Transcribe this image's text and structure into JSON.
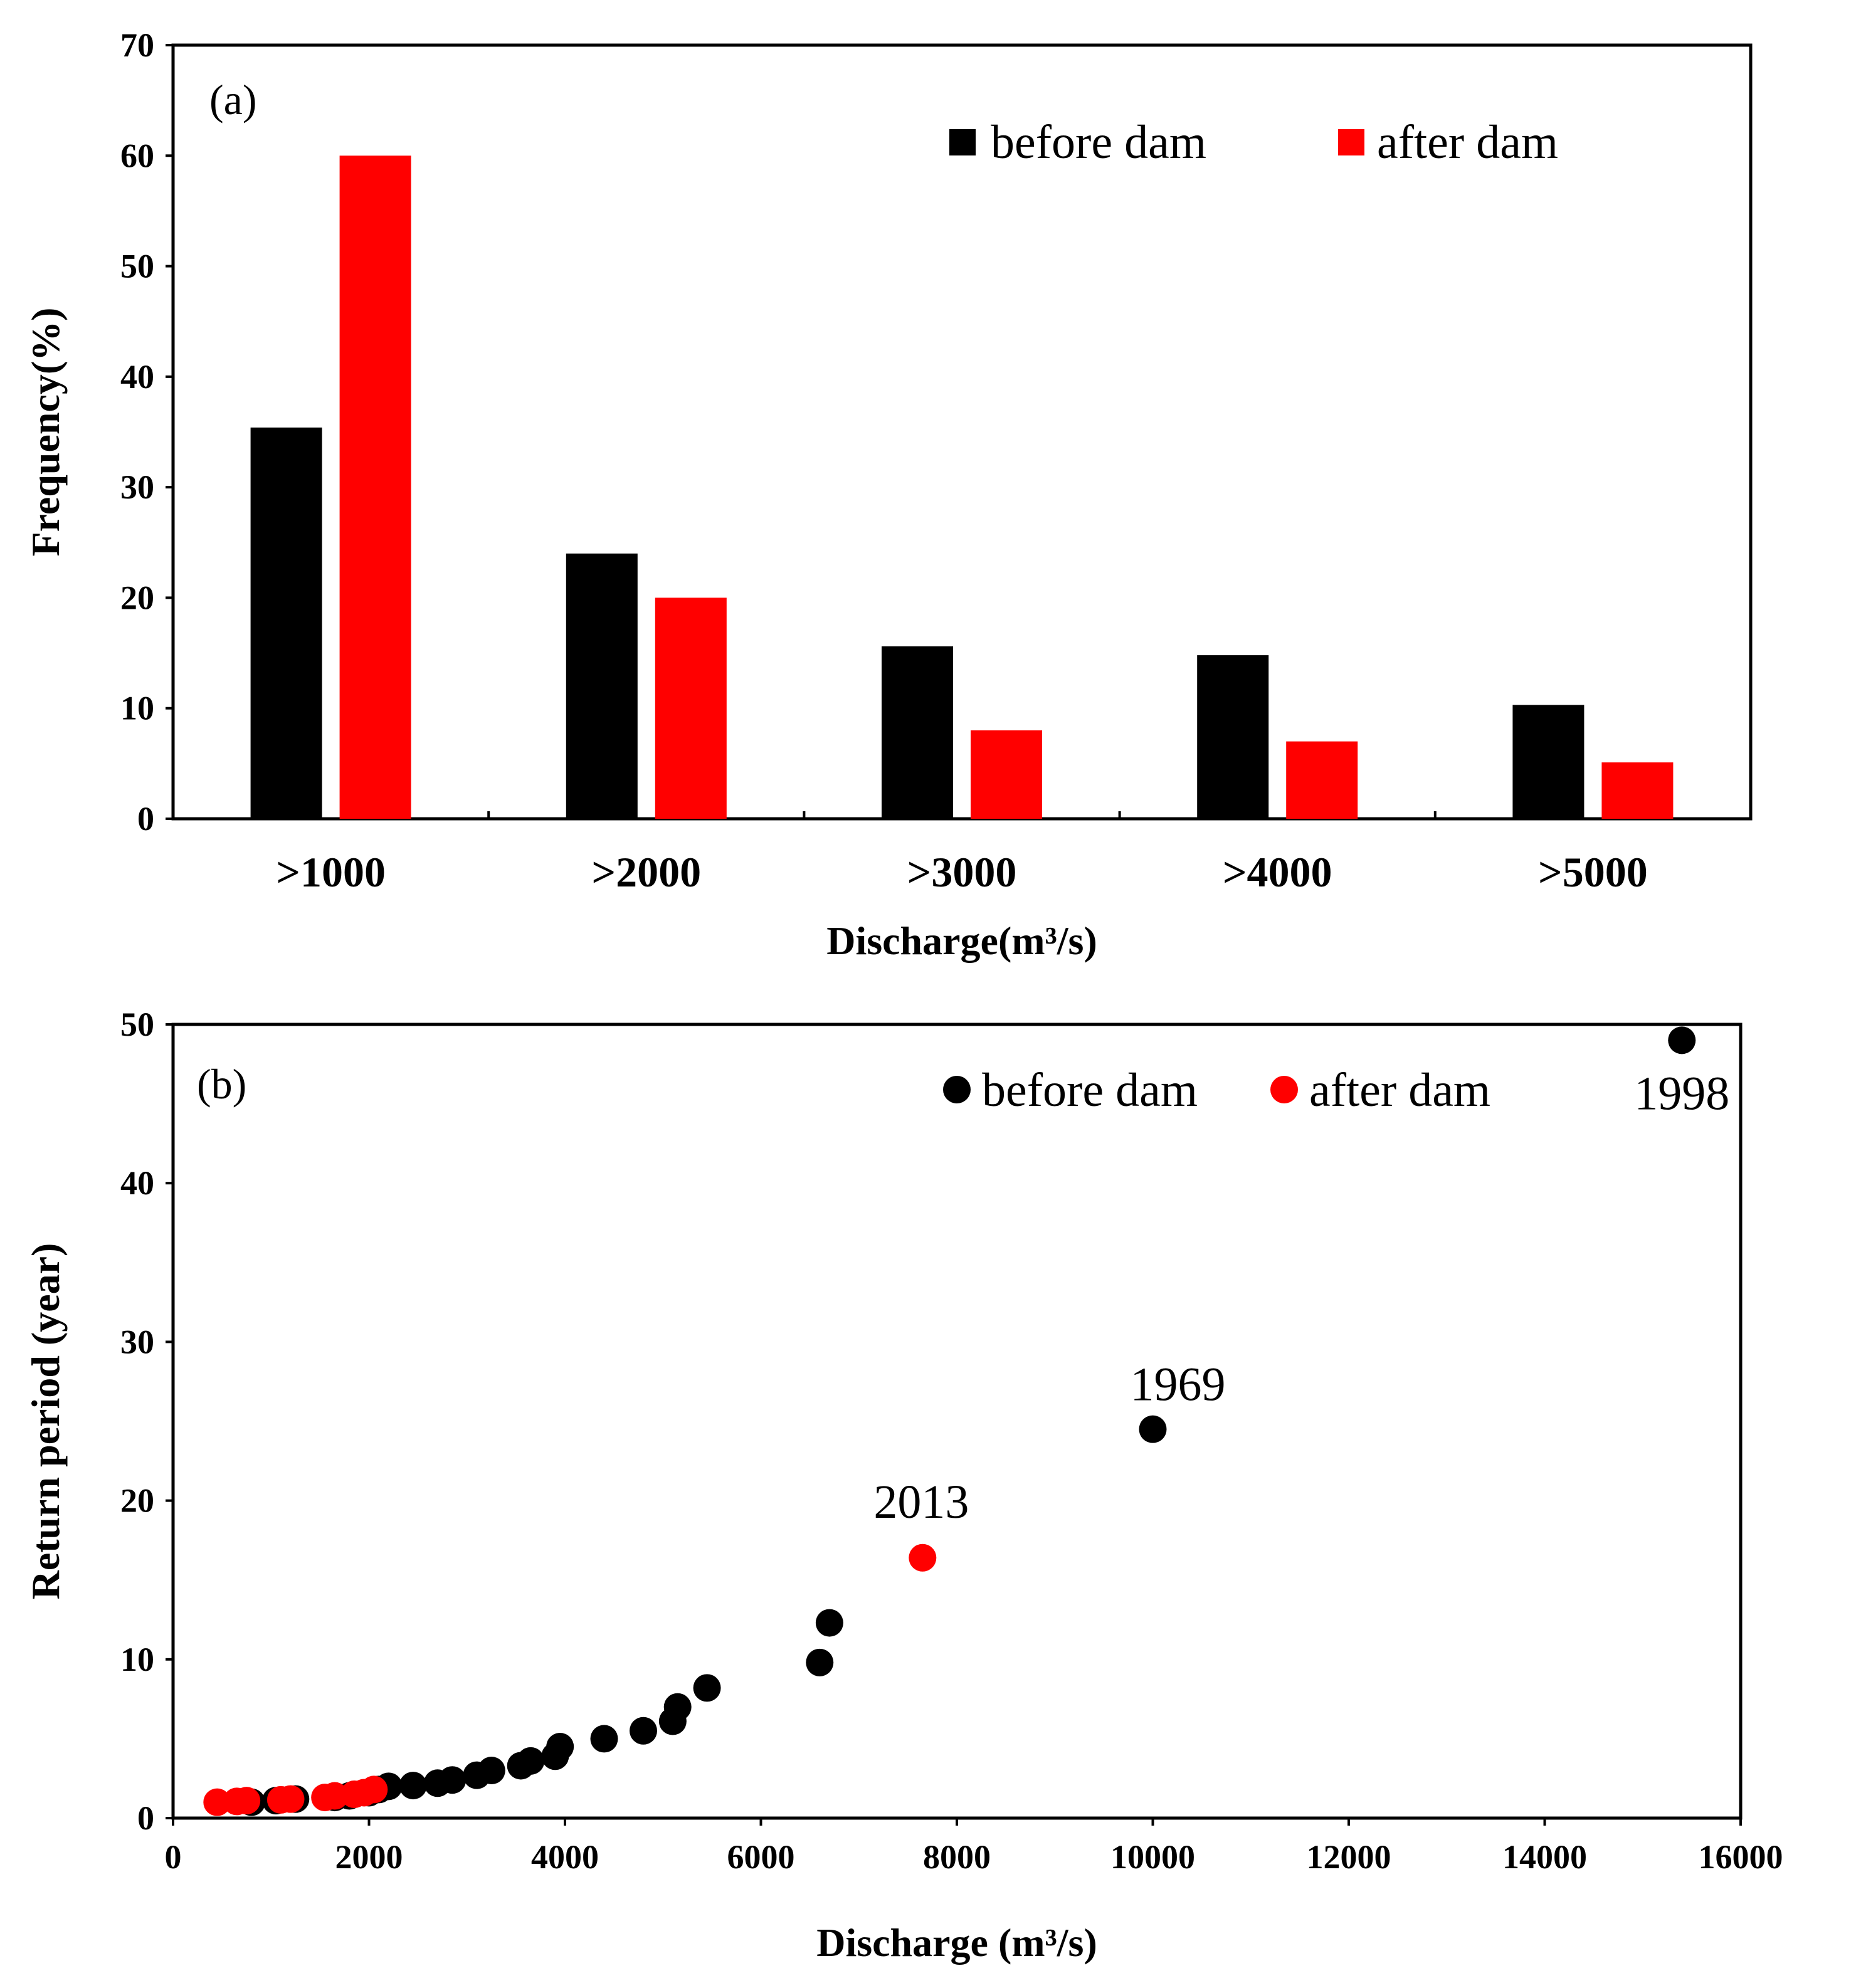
{
  "colors": {
    "before": "#000000",
    "after": "#ff0000"
  },
  "chart_data": [
    {
      "type": "bar",
      "panel_label": "(a)",
      "categories": [
        ">1000",
        ">2000",
        ">3000",
        ">4000",
        ">5000"
      ],
      "series": [
        {
          "name": "before dam",
          "color": "#000000",
          "values": [
            35.4,
            24.0,
            15.6,
            14.8,
            10.3
          ]
        },
        {
          "name": "after dam",
          "color": "#ff0000",
          "values": [
            60.0,
            20.0,
            8.0,
            7.0,
            5.1
          ]
        }
      ],
      "xlabel": "Discharge(m³/s)",
      "ylabel": "Frequency(%)",
      "ylim": [
        0,
        70
      ],
      "yticks": [
        0,
        10,
        20,
        30,
        40,
        50,
        60,
        70
      ],
      "legend": "top-right"
    },
    {
      "type": "scatter",
      "panel_label": "(b)",
      "xlabel": "Discharge (m³/s)",
      "ylabel": "Return period (year)",
      "xlim": [
        0,
        16000
      ],
      "ylim": [
        0,
        50
      ],
      "xticks": [
        0,
        2000,
        4000,
        6000,
        8000,
        10000,
        12000,
        14000,
        16000
      ],
      "yticks": [
        0,
        10,
        20,
        30,
        40,
        50
      ],
      "legend": "top-right",
      "series": [
        {
          "name": "before dam",
          "color": "#000000",
          "points": [
            [
              800,
              1.0
            ],
            [
              1050,
              1.1
            ],
            [
              1250,
              1.2
            ],
            [
              1650,
              1.3
            ],
            [
              1800,
              1.4
            ],
            [
              2000,
              1.6
            ],
            [
              2100,
              1.8
            ],
            [
              2200,
              2.0
            ],
            [
              2450,
              2.05
            ],
            [
              2700,
              2.2
            ],
            [
              2850,
              2.4
            ],
            [
              3100,
              2.7
            ],
            [
              3250,
              3.0
            ],
            [
              3550,
              3.3
            ],
            [
              3650,
              3.6
            ],
            [
              3900,
              3.9
            ],
            [
              3950,
              4.5
            ],
            [
              4400,
              5.0
            ],
            [
              4800,
              5.5
            ],
            [
              5100,
              6.1
            ],
            [
              5150,
              7.0
            ],
            [
              5450,
              8.2
            ],
            [
              6600,
              9.8
            ],
            [
              6700,
              12.3
            ],
            [
              10000,
              24.5
            ],
            [
              15400,
              49.0
            ]
          ]
        },
        {
          "name": "after dam",
          "color": "#ff0000",
          "points": [
            [
              450,
              1.0
            ],
            [
              650,
              1.05
            ],
            [
              750,
              1.1
            ],
            [
              1100,
              1.15
            ],
            [
              1200,
              1.2
            ],
            [
              1550,
              1.3
            ],
            [
              1650,
              1.4
            ],
            [
              1850,
              1.5
            ],
            [
              1950,
              1.6
            ],
            [
              2050,
              1.8
            ],
            [
              7650,
              16.4
            ]
          ]
        }
      ],
      "annotations": [
        {
          "text": "1998",
          "x": 15400,
          "y": 49.0
        },
        {
          "text": "1969",
          "x": 10000,
          "y": 24.5
        },
        {
          "text": "2013",
          "x": 7650,
          "y": 16.4
        }
      ]
    }
  ]
}
